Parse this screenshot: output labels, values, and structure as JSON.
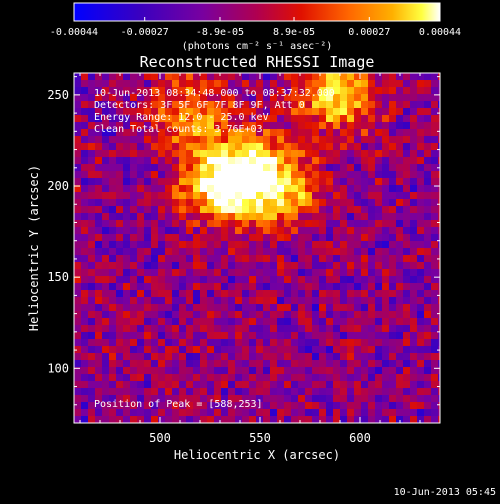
{
  "colorbar": {
    "tick_labels": [
      "-0.00044",
      "-0.00027",
      "-8.9e-05",
      "8.9e-05",
      "0.00027",
      "0.00044"
    ],
    "units_label": "(photons cm⁻² s⁻¹ asec⁻²)"
  },
  "plot": {
    "title": "Reconstructed RHESSI Image",
    "xlabel": "Heliocentric X (arcsec)",
    "ylabel": "Heliocentric Y (arcsec)",
    "x_ticks": [
      "500",
      "550",
      "600"
    ],
    "y_ticks": [
      "250",
      "200",
      "150",
      "100"
    ],
    "info_lines": [
      "10-Jun-2013 08:34:48.000 to 08:37:32.000",
      "Detectors: 3F 5F 6F 7F 8F 9F, Att 0",
      "Energy Range: 12.0 - 25.0 keV",
      "Clean    Total counts: 3.76E+03"
    ],
    "peak_label": "Position of Peak = [588,253]"
  },
  "footer": {
    "timestamp": "10-Jun-2013 05:45"
  },
  "chart_data": {
    "type": "heatmap",
    "title": "Reconstructed RHESSI Image",
    "xlabel": "Heliocentric X (arcsec)",
    "ylabel": "Heliocentric Y (arcsec)",
    "xlim": [
      457,
      640
    ],
    "ylim": [
      70,
      262
    ],
    "x_ticks": [
      500,
      550,
      600
    ],
    "y_ticks": [
      100,
      150,
      200,
      250
    ],
    "colorbar_range": [
      -0.00044,
      0.00044
    ],
    "colorbar_ticks": [
      -0.00044,
      -0.00027,
      -8.9e-05,
      8.9e-05,
      0.00027,
      0.00044
    ],
    "colormap": [
      "#0000ff",
      "#3a00c0",
      "#7800a0",
      "#b00050",
      "#e01000",
      "#ff6600",
      "#ffb000",
      "#ffff40",
      "#ffffff"
    ],
    "peak_position": [
      588,
      253
    ],
    "emission_sources": [
      {
        "x": 530,
        "y": 200,
        "amplitude": 1.0
      },
      {
        "x": 560,
        "y": 198,
        "amplitude": 0.8
      },
      {
        "x": 543,
        "y": 210,
        "amplitude": 0.85
      },
      {
        "x": 588,
        "y": 250,
        "amplitude": 0.95
      },
      {
        "x": 515,
        "y": 240,
        "amplitude": 0.65
      }
    ]
  }
}
